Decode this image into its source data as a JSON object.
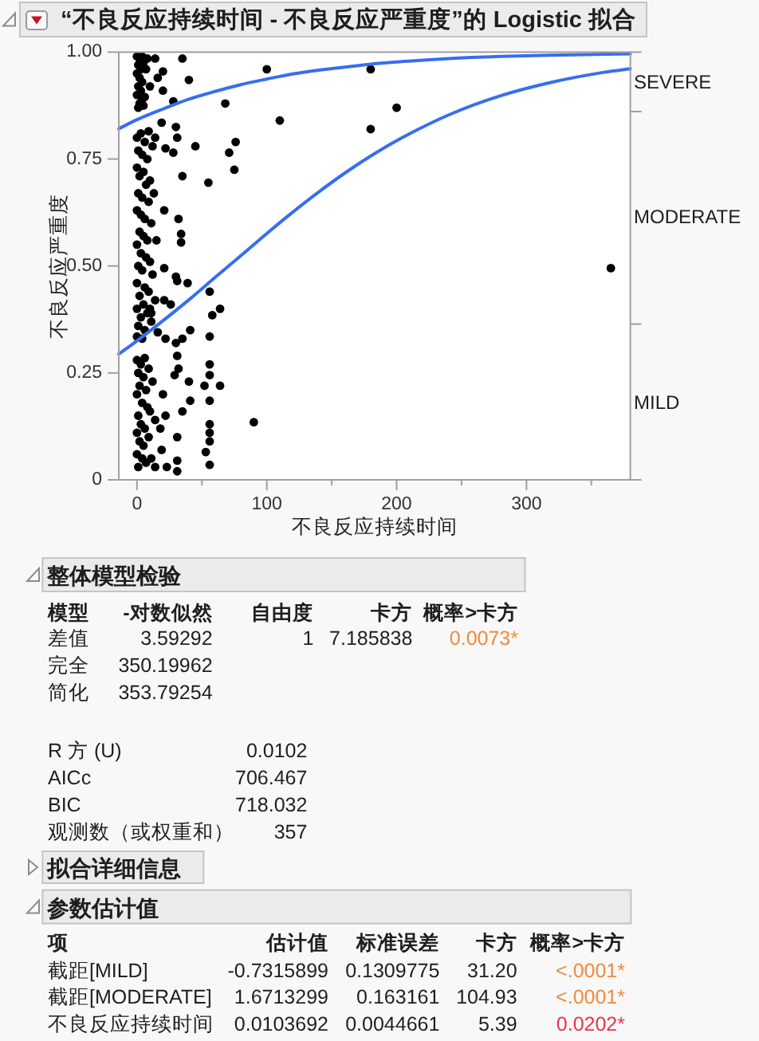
{
  "chart_data": [
    {
      "type": "scatter",
      "title": "“不良反应持续时间 - 不良反应严重度”的 Logistic 拟合",
      "xlabel": "不良反应持续时间",
      "ylabel": "不良反应严重度",
      "xlim": [
        -14,
        380
      ],
      "xticks": [
        0,
        {
          "value": 50,
          "label": null
        },
        100,
        {
          "value": 150,
          "label": null
        },
        200,
        {
          "value": 250,
          "label": null
        },
        300,
        {
          "value": 350,
          "label": null
        }
      ],
      "ylim": [
        0,
        1
      ],
      "yticks": [
        0,
        0.25,
        {
          "value": 0.5,
          "label": "0.50"
        },
        0.75,
        {
          "value": 1,
          "label": "1.00"
        }
      ],
      "annotations": [
        "SEVERE",
        "MODERATE",
        "MILD"
      ],
      "series": [
        {
          "type": "scatter",
          "marker": "circle",
          "color": "#000000",
          "x": [
            0,
            2,
            4,
            1,
            3,
            0,
            5,
            2,
            4,
            1,
            3,
            0,
            6,
            2,
            5,
            8,
            7,
            4,
            10,
            1,
            14,
            20,
            16,
            35,
            40,
            20,
            28,
            68,
            100,
            180,
            200,
            110,
            180,
            76,
            71,
            45,
            75,
            35,
            55,
            30,
            31,
            19,
            22,
            28,
            21,
            32,
            34,
            34,
            30,
            21,
            365,
            31,
            39,
            56,
            64,
            58,
            41,
            0,
            3,
            6,
            9,
            1,
            4,
            8,
            12,
            14,
            0,
            2,
            5,
            10,
            7,
            1,
            4,
            9,
            13,
            0,
            3,
            6,
            11,
            2,
            5,
            8,
            0,
            15,
            3,
            7,
            10,
            1,
            4,
            12,
            0,
            6,
            9,
            2,
            14,
            5,
            0,
            8,
            3,
            11,
            1,
            6,
            16,
            4,
            0,
            10,
            0,
            3,
            6,
            1,
            5,
            9,
            2,
            7,
            0,
            12,
            4,
            8,
            1,
            10,
            3,
            6,
            0,
            14,
            2,
            5,
            9,
            0,
            4,
            7,
            1,
            11,
            14,
            23,
            19,
            18,
            22,
            20,
            22,
            26,
            21,
            11,
            90,
            30,
            31,
            56,
            56,
            56,
            32,
            29,
            64,
            52,
            40,
            41,
            35,
            56,
            56,
            56,
            56,
            53,
            56,
            31,
            31,
            31,
            35
          ],
          "values": [
            0.99,
            0.985,
            0.99,
            0.97,
            0.96,
            0.95,
            0.975,
            0.94,
            0.93,
            0.92,
            0.91,
            0.9,
            0.895,
            0.88,
            0.875,
            0.985,
            0.96,
            0.89,
            0.92,
            0.87,
            0.985,
            0.955,
            0.94,
            0.985,
            0.935,
            0.91,
            0.885,
            0.88,
            0.96,
            0.96,
            0.87,
            0.84,
            0.82,
            0.79,
            0.765,
            0.78,
            0.725,
            0.71,
            0.695,
            0.825,
            0.8,
            0.835,
            0.775,
            0.765,
            0.63,
            0.61,
            0.575,
            0.555,
            0.475,
            0.495,
            0.495,
            0.465,
            0.46,
            0.44,
            0.4,
            0.385,
            0.35,
            0.8,
            0.81,
            0.79,
            0.815,
            0.77,
            0.76,
            0.75,
            0.78,
            0.8,
            0.73,
            0.71,
            0.72,
            0.7,
            0.69,
            0.67,
            0.66,
            0.65,
            0.67,
            0.63,
            0.62,
            0.61,
            0.6,
            0.58,
            0.57,
            0.56,
            0.55,
            0.56,
            0.53,
            0.52,
            0.51,
            0.5,
            0.49,
            0.48,
            0.46,
            0.45,
            0.44,
            0.43,
            0.42,
            0.41,
            0.4,
            0.39,
            0.38,
            0.37,
            0.36,
            0.35,
            0.345,
            0.33,
            0.335,
            0.4,
            0.28,
            0.27,
            0.285,
            0.25,
            0.24,
            0.26,
            0.22,
            0.21,
            0.2,
            0.23,
            0.18,
            0.17,
            0.15,
            0.16,
            0.13,
            0.12,
            0.11,
            0.14,
            0.09,
            0.08,
            0.1,
            0.06,
            0.05,
            0.04,
            0.03,
            0.05,
            0.03,
            0.03,
            0.07,
            0.12,
            0.15,
            0.2,
            0.33,
            0.41,
            0.42,
            0.39,
            0.135,
            0.32,
            0.29,
            0.335,
            0.27,
            0.245,
            0.26,
            0.245,
            0.22,
            0.22,
            0.23,
            0.185,
            0.16,
            0.185,
            0.13,
            0.11,
            0.09,
            0.065,
            0.035,
            0.1,
            0.045,
            0.02,
            0.33
          ]
        },
        {
          "type": "line",
          "color": "#376ef0",
          "x": [
            -14,
            0,
            20,
            40,
            60,
            80,
            100,
            120,
            140,
            160,
            180,
            200,
            240,
            280,
            320,
            360,
            380
          ],
          "values": [
            0.821,
            0.842,
            0.867,
            0.89,
            0.908,
            0.924,
            0.937,
            0.949,
            0.958,
            0.965,
            0.972,
            0.977,
            0.985,
            0.99,
            0.993,
            0.995,
            0.996
          ]
        },
        {
          "type": "line",
          "color": "#376ef0",
          "x": [
            -14,
            0,
            20,
            40,
            60,
            80,
            100,
            120,
            140,
            160,
            180,
            200,
            240,
            280,
            320,
            360,
            380
          ],
          "values": [
            0.294,
            0.325,
            0.372,
            0.421,
            0.473,
            0.524,
            0.576,
            0.626,
            0.673,
            0.717,
            0.757,
            0.793,
            0.853,
            0.898,
            0.93,
            0.953,
            0.961
          ]
        }
      ]
    },
    {
      "type": "other",
      "title": "整体模型检验",
      "annotations": [
        "模型",
        "-对数似然",
        "自由度",
        "卡方",
        "概率>卡方",
        "差值",
        "3.59292",
        "1",
        "7.185838",
        "0.0073*",
        "完全",
        "350.19962",
        "简化",
        "353.79254",
        "R 方 (U)",
        "0.0102",
        "AICc",
        "706.467",
        "BIC",
        "718.032",
        "观测数（或权重和）",
        "357"
      ]
    },
    {
      "type": "other",
      "title": "拟合详细信息"
    },
    {
      "type": "other",
      "title": "参数估计值",
      "annotations": [
        "项",
        "估计值",
        "标准误差",
        "卡方",
        "概率>卡方",
        "截距[MILD]",
        "-0.7315899",
        "0.1309775",
        "31.20",
        "<.0001*",
        "截距[MODERATE]",
        "1.6713299",
        "0.163161",
        "104.93",
        "<.0001*",
        "不良反应持续时间",
        "0.0103692",
        "0.0044661",
        "5.39",
        "0.0202*"
      ]
    }
  ]
}
